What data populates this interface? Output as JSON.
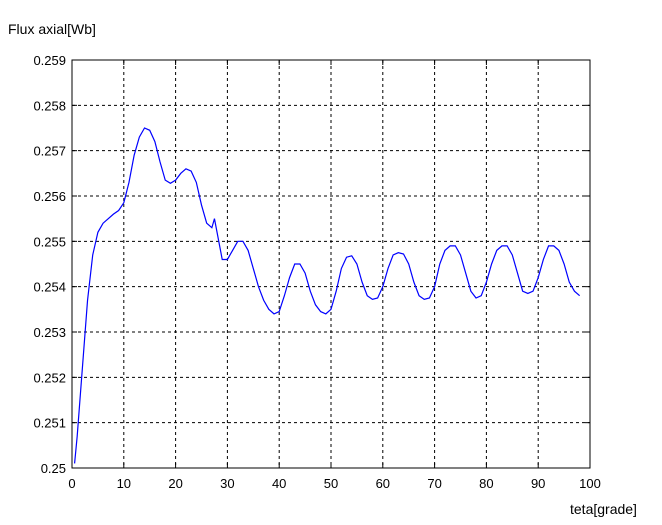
{
  "chart_data": {
    "type": "line",
    "ylabel": "Flux axial[Wb]",
    "xlabel": "teta[grade]",
    "xlim": [
      0,
      100
    ],
    "ylim": [
      0.25,
      0.259
    ],
    "xticks": [
      0,
      10,
      20,
      30,
      40,
      50,
      60,
      70,
      80,
      90,
      100
    ],
    "yticks": [
      0.25,
      0.251,
      0.252,
      0.253,
      0.254,
      0.255,
      0.256,
      0.257,
      0.258,
      0.259
    ],
    "xtick_labels": [
      "0",
      "10",
      "20",
      "30",
      "40",
      "50",
      "60",
      "70",
      "80",
      "90",
      "100"
    ],
    "ytick_labels": [
      "0.25",
      "0.251",
      "0.252",
      "0.253",
      "0.254",
      "0.255",
      "0.256",
      "0.257",
      "0.258",
      "0.259"
    ],
    "grid": true,
    "line_color": "#0000ff",
    "series": [
      {
        "x": [
          0.5,
          1,
          2,
          3,
          4,
          5,
          6,
          7,
          8,
          9,
          10,
          11,
          12,
          13,
          14,
          15,
          16,
          17,
          18,
          19,
          20,
          21,
          22,
          23,
          24,
          25,
          26,
          27,
          27.5,
          28,
          28.5,
          29,
          30,
          31,
          32,
          33,
          34,
          35,
          36,
          37,
          38,
          39,
          40,
          41,
          42,
          43,
          44,
          45,
          46,
          47,
          48,
          49,
          50,
          51,
          52,
          53,
          54,
          55,
          56,
          57,
          58,
          59,
          60,
          61,
          62,
          63,
          64,
          65,
          66,
          67,
          68,
          69,
          70,
          71,
          72,
          73,
          74,
          75,
          76,
          77,
          78,
          79,
          80,
          81,
          82,
          83,
          84,
          85,
          86,
          87,
          88,
          89,
          90,
          91,
          92,
          93,
          94,
          95,
          96,
          97,
          98
        ],
        "y": [
          0.2501,
          0.2507,
          0.2522,
          0.2537,
          0.2547,
          0.2552,
          0.2554,
          0.2555,
          0.2556,
          0.25568,
          0.25585,
          0.2563,
          0.2569,
          0.2573,
          0.2575,
          0.25745,
          0.2572,
          0.25675,
          0.25635,
          0.25628,
          0.25635,
          0.2565,
          0.2566,
          0.25655,
          0.2563,
          0.2558,
          0.2554,
          0.2553,
          0.2555,
          0.2552,
          0.2549,
          0.2546,
          0.2546,
          0.2548,
          0.255,
          0.255,
          0.2548,
          0.2544,
          0.254,
          0.2537,
          0.2535,
          0.2534,
          0.25345,
          0.2538,
          0.2542,
          0.2545,
          0.2545,
          0.2543,
          0.2539,
          0.2536,
          0.25345,
          0.2534,
          0.2535,
          0.2539,
          0.2544,
          0.25465,
          0.25468,
          0.2545,
          0.2541,
          0.2538,
          0.25372,
          0.25375,
          0.254,
          0.2544,
          0.2547,
          0.25475,
          0.25472,
          0.2545,
          0.2541,
          0.2538,
          0.25372,
          0.25375,
          0.254,
          0.2545,
          0.2548,
          0.2549,
          0.2549,
          0.2547,
          0.2543,
          0.2539,
          0.25375,
          0.2538,
          0.2541,
          0.2545,
          0.2548,
          0.2549,
          0.2549,
          0.2547,
          0.2543,
          0.2539,
          0.25385,
          0.2539,
          0.2542,
          0.2546,
          0.2549,
          0.2549,
          0.2548,
          0.2545,
          0.2541,
          0.2539,
          0.2538
        ]
      }
    ]
  }
}
